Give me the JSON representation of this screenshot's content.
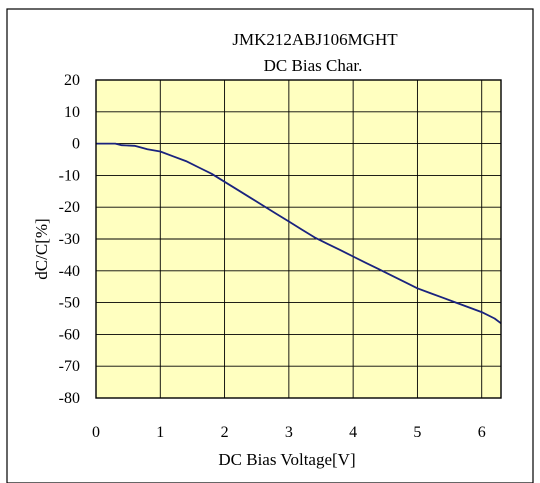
{
  "chart_data": {
    "type": "line",
    "title": "JMK212ABJ106MGHT",
    "subtitle": "DC Bias Char.",
    "xlabel": "DC Bias Voltage[V]",
    "ylabel": "dC/C[%]",
    "xlim": [
      0,
      6.3
    ],
    "ylim": [
      -80,
      20
    ],
    "xticks": [
      "0",
      "1",
      "2",
      "3",
      "4",
      "5",
      "6"
    ],
    "yticks": [
      "20",
      "10",
      "0",
      "-10",
      "-20",
      "-30",
      "-40",
      "-50",
      "-60",
      "-70",
      "-80"
    ],
    "grid": true,
    "legend": "none",
    "colors": {
      "plot_background": "#ffffc0",
      "line": "#1a237e",
      "grid": "#000000",
      "frame": "#000000"
    },
    "series": [
      {
        "x": [
          0,
          0.2,
          0.3,
          0.4,
          0.6,
          0.8,
          1.0,
          1.2,
          1.4,
          1.6,
          1.8,
          2.0,
          2.2,
          2.4,
          2.6,
          2.8,
          3.0,
          3.2,
          3.4,
          3.6,
          3.8,
          4.0,
          4.2,
          4.4,
          4.6,
          4.8,
          5.0,
          5.2,
          5.4,
          5.6,
          5.8,
          6.0,
          6.2,
          6.3
        ],
        "y": [
          0,
          0,
          0,
          -0.5,
          -0.7,
          -1.8,
          -2.5,
          -4,
          -5.5,
          -7.5,
          -9.5,
          -12,
          -14.5,
          -17,
          -19.5,
          -22,
          -24.5,
          -27,
          -29.5,
          -31.5,
          -33.5,
          -35.5,
          -37.5,
          -39.5,
          -41.5,
          -43.5,
          -45.5,
          -47,
          -48.5,
          -50,
          -51.5,
          -53,
          -55,
          -56.5
        ]
      }
    ]
  }
}
